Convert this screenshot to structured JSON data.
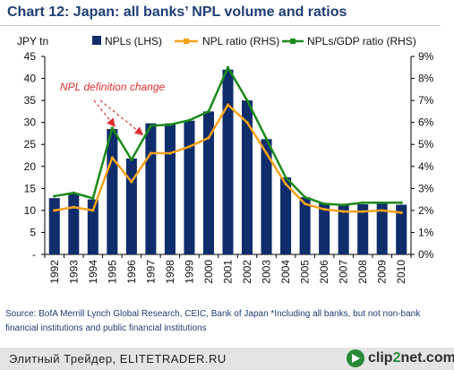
{
  "title": "Chart 12: Japan: all banks’ NPL volume and ratios",
  "source": "Source: BofA Merrill Lynch Global Research, CEIC, Bank of Japan *Including all banks, but not non-bank financial institutions and public financial institutions",
  "footer": {
    "brand": "Элитный Трейдер, ELITETRADER.RU",
    "logo_prefix": "clip",
    "logo_two": "2",
    "logo_suffix": "net.com"
  },
  "colors": {
    "bars": "#0f2d6b",
    "npl_ratio": "#f5a21b",
    "npl_gdp": "#1c8a1c",
    "annotation": "#e03030",
    "title": "#1f3d73"
  },
  "chart_data": {
    "type": "bar",
    "title": "Chart 12: Japan: all banks’ NPL volume and ratios",
    "ylabel_left": "JPY tn",
    "ylabel_right": "",
    "categories": [
      "1992",
      "1993",
      "1994",
      "1995",
      "1996",
      "1997",
      "1998",
      "1999",
      "2000",
      "2001",
      "2002",
      "2003",
      "2004",
      "2005",
      "2006",
      "2007",
      "2008",
      "2009",
      "2010"
    ],
    "ylim_left": [
      0,
      45
    ],
    "ylim_right": [
      0,
      9
    ],
    "left_ticks": [
      "-",
      "5",
      "10",
      "15",
      "20",
      "25",
      "30",
      "35",
      "40",
      "45"
    ],
    "right_ticks": [
      "0%",
      "1%",
      "2%",
      "3%",
      "4%",
      "5%",
      "6%",
      "7%",
      "8%",
      "9%"
    ],
    "series": [
      {
        "name": "NPLs (LHS)",
        "type": "bar",
        "axis": "left",
        "values": [
          12.8,
          13.8,
          12.5,
          28.5,
          21.8,
          29.8,
          29.8,
          30.4,
          32.5,
          42.0,
          35.0,
          26.2,
          17.5,
          13.0,
          11.6,
          11.2,
          11.4,
          11.5,
          11.3
        ]
      },
      {
        "name": "NPL ratio (RHS)",
        "type": "line",
        "axis": "right",
        "values": [
          2.0,
          2.15,
          2.0,
          4.4,
          3.3,
          4.6,
          4.6,
          4.9,
          5.3,
          6.8,
          6.0,
          4.6,
          3.2,
          2.3,
          2.05,
          1.95,
          1.95,
          2.0,
          1.9
        ]
      },
      {
        "name": "NPLs/GDP ratio (RHS)",
        "type": "line",
        "axis": "right",
        "values": [
          2.65,
          2.8,
          2.55,
          5.75,
          4.3,
          5.85,
          5.9,
          6.1,
          6.5,
          8.5,
          7.0,
          5.25,
          3.5,
          2.6,
          2.3,
          2.25,
          2.35,
          2.35,
          2.35
        ]
      }
    ],
    "annotation": "NPL definition change",
    "annotation_targets": [
      "1995",
      "1997"
    ],
    "legend_position": "top",
    "grid": false
  }
}
